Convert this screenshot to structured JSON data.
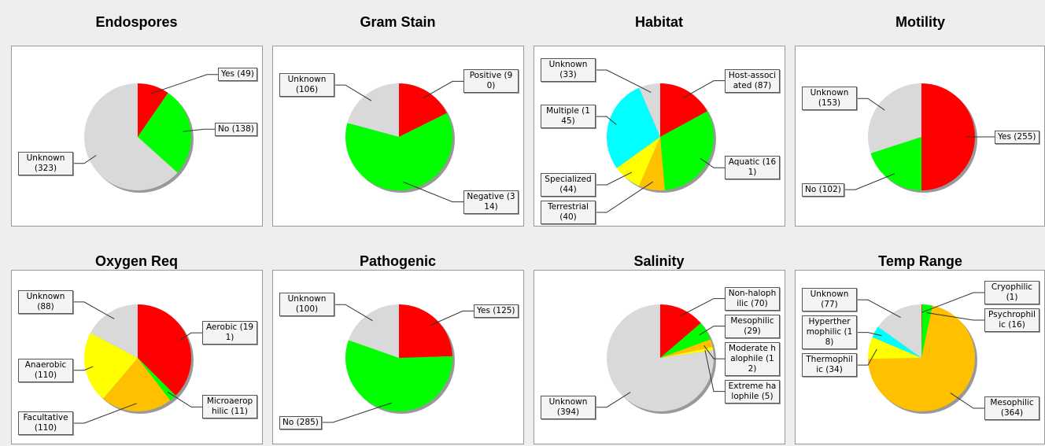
{
  "chart_data": [
    {
      "type": "pie",
      "title": "Endospores",
      "values": [
        49,
        138,
        323
      ],
      "value_labels": [
        "Yes (49)",
        "No (138)",
        "Unknown (323)"
      ],
      "colors": [
        "#ff0000",
        "#00ff00",
        "#d9d9d9"
      ]
    },
    {
      "type": "pie",
      "title": "Gram Stain",
      "values": [
        90,
        314,
        106
      ],
      "value_labels": [
        "Positive (90)",
        "Negative (314)",
        "Unknown (106)"
      ],
      "colors": [
        "#ff0000",
        "#00ff00",
        "#d9d9d9"
      ]
    },
    {
      "type": "pie",
      "title": "Habitat",
      "values": [
        87,
        161,
        40,
        44,
        145,
        33
      ],
      "value_labels": [
        "Host-associated (87)",
        "Aquatic (161)",
        "Terrestrial (40)",
        "Specialized (44)",
        "Multiple (145)",
        "Unknown (33)"
      ],
      "colors": [
        "#ff0000",
        "#00ff00",
        "#ffc000",
        "#ffff00",
        "#00ffff",
        "#d9d9d9"
      ]
    },
    {
      "type": "pie",
      "title": "Motility",
      "values": [
        255,
        102,
        153
      ],
      "value_labels": [
        "Yes (255)",
        "No (102)",
        "Unknown (153)"
      ],
      "colors": [
        "#ff0000",
        "#00ff00",
        "#d9d9d9"
      ]
    },
    {
      "type": "pie",
      "title": "Oxygen Req",
      "values": [
        191,
        11,
        110,
        110,
        88
      ],
      "value_labels": [
        "Aerobic (191)",
        "Microaerophilic (11)",
        "Facultative (110)",
        "Anaerobic (110)",
        "Unknown (88)"
      ],
      "colors": [
        "#ff0000",
        "#00ff00",
        "#ffc000",
        "#ffff00",
        "#d9d9d9"
      ]
    },
    {
      "type": "pie",
      "title": "Pathogenic",
      "values": [
        125,
        285,
        100
      ],
      "value_labels": [
        "Yes (125)",
        "No (285)",
        "Unknown (100)"
      ],
      "colors": [
        "#ff0000",
        "#00ff00",
        "#d9d9d9"
      ]
    },
    {
      "type": "pie",
      "title": "Salinity",
      "values": [
        70,
        29,
        12,
        5,
        394
      ],
      "value_labels": [
        "Non-halophilic (70)",
        "Mesophilic (29)",
        "Moderate halophile (12)",
        "Extreme halophile (5)",
        "Unknown (394)"
      ],
      "colors": [
        "#ff0000",
        "#00ff00",
        "#ffc000",
        "#ffff00",
        "#d9d9d9"
      ]
    },
    {
      "type": "pie",
      "title": "Temp Range",
      "values": [
        1,
        16,
        364,
        34,
        18,
        77
      ],
      "value_labels": [
        "Cryophilic (1)",
        "Psychrophilic (16)",
        "Mesophilic (364)",
        "Thermophilic (34)",
        "Hyperthermophilic (18)",
        "Unknown (77)"
      ],
      "colors": [
        "#ff0000",
        "#00ff00",
        "#ffc000",
        "#ffff00",
        "#00ffff",
        "#d9d9d9"
      ]
    }
  ]
}
